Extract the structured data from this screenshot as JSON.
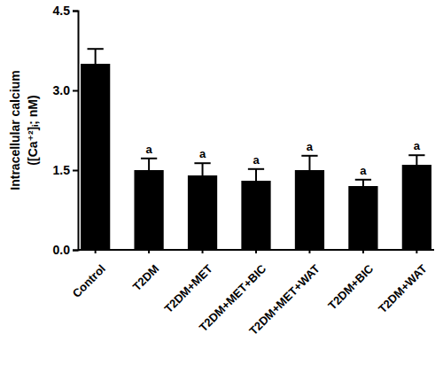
{
  "chart_data": {
    "type": "bar",
    "y_label": [
      "Intracellular calcium",
      "([Ca⁺²]ᵢ; nM)"
    ],
    "categories": [
      "Control",
      "T2DM",
      "T2DM+MET",
      "T2DM+MET+BIC",
      "T2DM+MET+WAT",
      "T2DM+BIC",
      "T2DM+WAT"
    ],
    "values": [
      3.5,
      1.5,
      1.4,
      1.3,
      1.5,
      1.2,
      1.6
    ],
    "errors": [
      0.28,
      0.22,
      0.23,
      0.22,
      0.27,
      0.12,
      0.18
    ],
    "significance": [
      null,
      "a",
      "a",
      "a",
      "a",
      "a",
      "a"
    ],
    "color": "#000000",
    "ylim": [
      0,
      4.5
    ],
    "yticks": [
      {
        "value": 0,
        "label": "0.0"
      },
      1.5,
      {
        "value": 3,
        "label": "3.0"
      },
      4.5
    ],
    "grid": false
  }
}
